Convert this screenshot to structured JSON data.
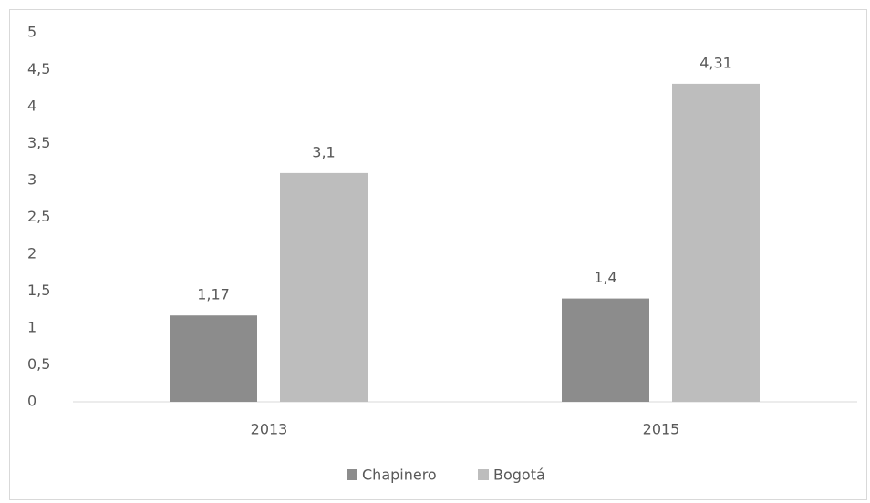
{
  "chart_data": {
    "type": "bar",
    "categories": [
      "2013",
      "2015"
    ],
    "series": [
      {
        "name": "Chapinero",
        "color": "#8c8c8c",
        "values": [
          1.17,
          1.4
        ],
        "value_labels": [
          "1,17",
          "1,4"
        ]
      },
      {
        "name": "Bogotá",
        "color": "#bdbdbd",
        "values": [
          3.1,
          4.31
        ],
        "value_labels": [
          "3,1",
          "4,31"
        ]
      }
    ],
    "ylim": [
      0,
      5
    ],
    "yticks": [
      0,
      {
        "value": 0.5,
        "label": "0,5"
      },
      1,
      {
        "value": 1.5,
        "label": "1,5"
      },
      2,
      {
        "value": 2.5,
        "label": "2,5"
      },
      3,
      {
        "value": 3.5,
        "label": "3,5"
      },
      4,
      {
        "value": 4.5,
        "label": "4,5"
      },
      5
    ],
    "grid": false,
    "legend": "bottom"
  }
}
